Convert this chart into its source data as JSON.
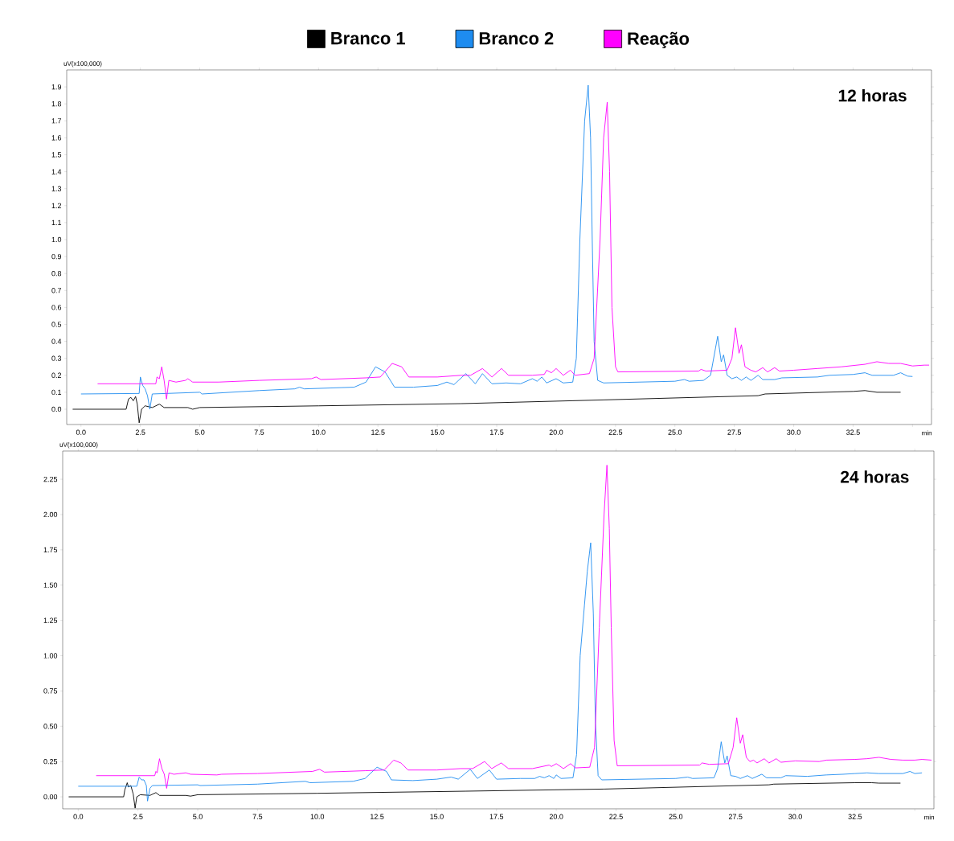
{
  "chart_data": [
    {
      "type": "line",
      "title": "12 horas",
      "xlabel": "min",
      "ylabel": "uV(x100,000)",
      "legend": "top",
      "xlim": [
        -0.6,
        35.8
      ],
      "ylim": [
        -0.09,
        2.0
      ],
      "xticks": [
        {
          "value": 0,
          "label": "0.0"
        },
        {
          "value": 2.5,
          "label": "2.5"
        },
        {
          "value": 5,
          "label": "5.0"
        },
        {
          "value": 7.5,
          "label": "7.5"
        },
        {
          "value": 10,
          "label": "10.0"
        },
        {
          "value": 12.5,
          "label": "12.5"
        },
        {
          "value": 15,
          "label": "15.0"
        },
        {
          "value": 17.5,
          "label": "17.5"
        },
        {
          "value": 20,
          "label": "20.0"
        },
        {
          "value": 22.5,
          "label": "22.5"
        },
        {
          "value": 25,
          "label": "25.0"
        },
        {
          "value": 27.5,
          "label": "27.5"
        },
        {
          "value": 30,
          "label": "30.0"
        },
        {
          "value": 32.5,
          "label": "32.5"
        },
        {
          "value": 35,
          "label": null
        }
      ],
      "yticks": [
        {
          "value": 0,
          "label": "0.0"
        },
        {
          "value": 0.1,
          "label": "0.1"
        },
        {
          "value": 0.2,
          "label": "0.2"
        },
        {
          "value": 0.3,
          "label": "0.3"
        },
        {
          "value": 0.4,
          "label": "0.4"
        },
        {
          "value": 0.5,
          "label": "0.5"
        },
        {
          "value": 0.6,
          "label": "0.6"
        },
        {
          "value": 0.7,
          "label": "0.7"
        },
        {
          "value": 0.8,
          "label": "0.8"
        },
        {
          "value": 0.9,
          "label": "0.9"
        },
        {
          "value": 1.0,
          "label": "1.0"
        },
        {
          "value": 1.1,
          "label": "1.1"
        },
        {
          "value": 1.2,
          "label": "1.2"
        },
        {
          "value": 1.3,
          "label": "1.3"
        },
        {
          "value": 1.4,
          "label": "1.4"
        },
        {
          "value": 1.5,
          "label": "1.5"
        },
        {
          "value": 1.6,
          "label": "1.6"
        },
        {
          "value": 1.7,
          "label": "1.7"
        },
        {
          "value": 1.8,
          "label": "1.8"
        },
        {
          "value": 1.9,
          "label": "1.9"
        }
      ],
      "series": [
        {
          "name": "Branco 1",
          "color": "#000000",
          "x": [
            -0.35,
            1.9,
            2.0,
            2.1,
            2.2,
            2.3,
            2.37,
            2.45,
            2.55,
            2.7,
            3.0,
            3.3,
            3.5,
            4.5,
            4.7,
            5.0,
            10,
            16,
            22,
            28.5,
            28.8,
            32.5,
            33.0,
            33.5,
            34.5
          ],
          "values": [
            0,
            0,
            0.06,
            0.07,
            0.05,
            0.075,
            0.03,
            -0.08,
            0.0,
            0.02,
            0.01,
            0.03,
            0.01,
            0.01,
            0.0,
            0.01,
            0.02,
            0.033,
            0.055,
            0.08,
            0.09,
            0.105,
            0.11,
            0.1,
            0.1
          ]
        },
        {
          "name": "Branco 2",
          "color": "#1e8cf0",
          "x": [
            0,
            2.45,
            2.5,
            2.6,
            2.7,
            2.8,
            2.9,
            3.0,
            5.0,
            5.1,
            7.5,
            9.0,
            9.2,
            9.4,
            11.5,
            12.0,
            12.4,
            12.8,
            13.2,
            14.0,
            15.0,
            15.4,
            15.7,
            16.2,
            16.6,
            16.9,
            17.3,
            17.9,
            18.5,
            19.0,
            19.2,
            19.4,
            19.6,
            20.0,
            20.3,
            20.7,
            20.85,
            21.0,
            21.2,
            21.35,
            21.45,
            21.52,
            21.6,
            21.75,
            22.0,
            25,
            25.4,
            25.6,
            26.2,
            26.5,
            26.8,
            26.95,
            27.05,
            27.2,
            27.4,
            27.6,
            27.8,
            28.0,
            28.2,
            28.5,
            28.7,
            29.2,
            29.5,
            31,
            31.5,
            32.5,
            33,
            33.3,
            34.2,
            34.5,
            34.8,
            35.0
          ],
          "values": [
            0.09,
            0.093,
            0.19,
            0.14,
            0.12,
            0.08,
            0.0,
            0.09,
            0.1,
            0.09,
            0.11,
            0.12,
            0.13,
            0.12,
            0.13,
            0.16,
            0.25,
            0.22,
            0.13,
            0.13,
            0.14,
            0.16,
            0.145,
            0.21,
            0.15,
            0.21,
            0.15,
            0.155,
            0.15,
            0.18,
            0.165,
            0.19,
            0.155,
            0.18,
            0.155,
            0.16,
            0.3,
            1.0,
            1.7,
            1.91,
            1.6,
            1.0,
            0.4,
            0.17,
            0.155,
            0.165,
            0.175,
            0.165,
            0.17,
            0.2,
            0.43,
            0.28,
            0.32,
            0.2,
            0.18,
            0.19,
            0.17,
            0.19,
            0.17,
            0.2,
            0.175,
            0.175,
            0.185,
            0.19,
            0.2,
            0.205,
            0.215,
            0.2,
            0.2,
            0.215,
            0.195,
            0.193
          ]
        },
        {
          "name": "Reação",
          "color": "#ff00ff",
          "x": [
            0.7,
            3.15,
            3.2,
            3.3,
            3.4,
            3.5,
            3.6,
            3.7,
            4.0,
            4.4,
            4.5,
            4.7,
            5.8,
            7.5,
            9.7,
            9.9,
            10.1,
            12.0,
            12.6,
            13.1,
            13.5,
            13.8,
            15.0,
            16.0,
            16.4,
            16.9,
            17.3,
            17.7,
            18.0,
            19.0,
            19.5,
            19.6,
            19.8,
            20.0,
            20.3,
            20.6,
            20.8,
            21.4,
            21.6,
            21.85,
            22.0,
            22.15,
            22.25,
            22.35,
            22.5,
            22.6,
            26,
            26.1,
            26.3,
            27.2,
            27.4,
            27.55,
            27.7,
            27.8,
            27.95,
            28.2,
            28.4,
            28.7,
            28.9,
            29.2,
            29.4,
            30,
            31,
            32,
            33,
            33.5,
            34,
            34.5,
            35,
            35.5,
            35.7
          ],
          "values": [
            0.15,
            0.15,
            0.19,
            0.18,
            0.25,
            0.17,
            0.06,
            0.17,
            0.16,
            0.17,
            0.18,
            0.16,
            0.16,
            0.17,
            0.18,
            0.19,
            0.175,
            0.185,
            0.19,
            0.27,
            0.25,
            0.19,
            0.19,
            0.2,
            0.2,
            0.24,
            0.19,
            0.24,
            0.2,
            0.2,
            0.205,
            0.23,
            0.215,
            0.24,
            0.2,
            0.23,
            0.2,
            0.21,
            0.3,
            1.0,
            1.6,
            1.81,
            1.4,
            0.6,
            0.25,
            0.22,
            0.225,
            0.235,
            0.225,
            0.23,
            0.3,
            0.48,
            0.33,
            0.38,
            0.25,
            0.23,
            0.22,
            0.245,
            0.22,
            0.245,
            0.225,
            0.23,
            0.24,
            0.25,
            0.265,
            0.28,
            0.27,
            0.27,
            0.255,
            0.26,
            0.26
          ]
        }
      ]
    },
    {
      "type": "line",
      "title": "24 horas",
      "xlabel": "min",
      "ylabel": "uV(x100,000)",
      "xlim": [
        -0.65,
        35.8
      ],
      "ylim": [
        -0.085,
        2.45
      ],
      "xticks": [
        {
          "value": 0,
          "label": "0.0"
        },
        {
          "value": 2.5,
          "label": "2.5"
        },
        {
          "value": 5,
          "label": "5.0"
        },
        {
          "value": 7.5,
          "label": "7.5"
        },
        {
          "value": 10,
          "label": "10.0"
        },
        {
          "value": 12.5,
          "label": "12.5"
        },
        {
          "value": 15,
          "label": "15.0"
        },
        {
          "value": 17.5,
          "label": "17.5"
        },
        {
          "value": 20,
          "label": "20.0"
        },
        {
          "value": 22.5,
          "label": "22.5"
        },
        {
          "value": 25,
          "label": "25.0"
        },
        {
          "value": 27.5,
          "label": "27.5"
        },
        {
          "value": 30,
          "label": "30.0"
        },
        {
          "value": 32.5,
          "label": "32.5"
        },
        {
          "value": 35,
          "label": null
        }
      ],
      "yticks": [
        {
          "value": 0,
          "label": "0.00"
        },
        {
          "value": 0.25,
          "label": "0.25"
        },
        {
          "value": 0.5,
          "label": "0.50"
        },
        {
          "value": 0.75,
          "label": "0.75"
        },
        {
          "value": 1.0,
          "label": "1.00"
        },
        {
          "value": 1.25,
          "label": "1.25"
        },
        {
          "value": 1.5,
          "label": "1.50"
        },
        {
          "value": 1.75,
          "label": "1.75"
        },
        {
          "value": 2.0,
          "label": "2.00"
        },
        {
          "value": 2.25,
          "label": "2.25"
        }
      ],
      "series": [
        {
          "color": "#000000",
          "x": [
            -0.4,
            1.9,
            1.95,
            2.05,
            2.1,
            2.2,
            2.3,
            2.38,
            2.45,
            2.6,
            3.0,
            3.25,
            3.4,
            4.5,
            4.7,
            5.0,
            10,
            16.2,
            22,
            28.9,
            29.1,
            32.5,
            33.2,
            33.5,
            34.4
          ],
          "values": [
            0,
            0,
            0.05,
            0.1,
            0.07,
            0.08,
            0.02,
            -0.08,
            0.0,
            0.015,
            0.01,
            0.03,
            0.01,
            0.01,
            0.005,
            0.015,
            0.025,
            0.04,
            0.055,
            0.085,
            0.09,
            0.1,
            0.1,
            0.097,
            0.097
          ]
        },
        {
          "color": "#1e8cf0",
          "x": [
            0,
            2.45,
            2.55,
            2.65,
            2.75,
            2.85,
            2.9,
            3.0,
            3.1,
            5.0,
            5.1,
            7.5,
            9.5,
            9.7,
            11.5,
            12.0,
            12.5,
            12.9,
            13.1,
            14,
            15.0,
            15.6,
            15.9,
            16.4,
            16.7,
            17.2,
            17.5,
            18.5,
            19.1,
            19.3,
            19.5,
            19.7,
            19.9,
            20.0,
            20.2,
            20.7,
            20.85,
            21.0,
            21.18,
            21.3,
            21.44,
            21.55,
            21.64,
            21.75,
            21.9,
            25,
            25.5,
            25.7,
            26.6,
            26.75,
            26.9,
            27.05,
            27.15,
            27.3,
            27.5,
            27.7,
            28.0,
            28.2,
            28.6,
            28.8,
            29.4,
            29.6,
            30.5,
            31.3,
            32,
            32.5,
            33,
            33.5,
            34.5,
            34.8,
            35.0,
            35.3
          ],
          "values": [
            0.075,
            0.075,
            0.14,
            0.12,
            0.12,
            0.08,
            -0.03,
            0.06,
            0.08,
            0.085,
            0.08,
            0.09,
            0.11,
            0.1,
            0.11,
            0.13,
            0.21,
            0.18,
            0.12,
            0.115,
            0.125,
            0.14,
            0.125,
            0.195,
            0.13,
            0.19,
            0.125,
            0.13,
            0.13,
            0.145,
            0.135,
            0.15,
            0.13,
            0.155,
            0.13,
            0.135,
            0.3,
            1.0,
            1.36,
            1.6,
            1.8,
            1.3,
            0.52,
            0.15,
            0.12,
            0.13,
            0.14,
            0.13,
            0.135,
            0.2,
            0.39,
            0.24,
            0.29,
            0.15,
            0.145,
            0.13,
            0.15,
            0.13,
            0.16,
            0.135,
            0.135,
            0.15,
            0.145,
            0.155,
            0.16,
            0.165,
            0.17,
            0.165,
            0.165,
            0.18,
            0.165,
            0.17
          ]
        },
        {
          "color": "#ff00ff",
          "x": [
            0.75,
            3.2,
            3.25,
            3.3,
            3.4,
            3.5,
            3.6,
            3.7,
            3.8,
            4.0,
            4.5,
            4.7,
            5.8,
            6.0,
            7.5,
            9.8,
            10.1,
            10.3,
            12,
            12.8,
            13.2,
            13.5,
            13.8,
            15.0,
            16.0,
            16.5,
            17.0,
            17.3,
            17.7,
            18.0,
            19.0,
            19.7,
            19.8,
            20.0,
            20.3,
            20.6,
            20.8,
            21.4,
            21.6,
            21.8,
            22.0,
            22.12,
            22.22,
            22.3,
            22.42,
            22.55,
            26,
            26.1,
            26.4,
            27.2,
            27.4,
            27.55,
            27.7,
            27.8,
            27.95,
            28.1,
            28.25,
            28.4,
            28.7,
            28.9,
            29.2,
            29.4,
            30,
            31,
            31.3,
            32.5,
            33,
            33.5,
            34,
            34.5,
            35,
            35.3,
            35.7
          ],
          "values": [
            0.15,
            0.15,
            0.18,
            0.17,
            0.27,
            0.2,
            0.16,
            0.06,
            0.17,
            0.16,
            0.17,
            0.16,
            0.155,
            0.16,
            0.165,
            0.18,
            0.195,
            0.175,
            0.185,
            0.19,
            0.26,
            0.24,
            0.19,
            0.19,
            0.2,
            0.2,
            0.25,
            0.2,
            0.24,
            0.2,
            0.2,
            0.225,
            0.215,
            0.235,
            0.2,
            0.235,
            0.205,
            0.21,
            0.35,
            1.2,
            2.0,
            2.35,
            1.9,
            1.2,
            0.4,
            0.22,
            0.225,
            0.24,
            0.23,
            0.235,
            0.35,
            0.56,
            0.38,
            0.44,
            0.28,
            0.25,
            0.26,
            0.24,
            0.27,
            0.24,
            0.27,
            0.245,
            0.255,
            0.25,
            0.26,
            0.265,
            0.27,
            0.28,
            0.265,
            0.26,
            0.26,
            0.265,
            0.26
          ]
        }
      ]
    }
  ]
}
